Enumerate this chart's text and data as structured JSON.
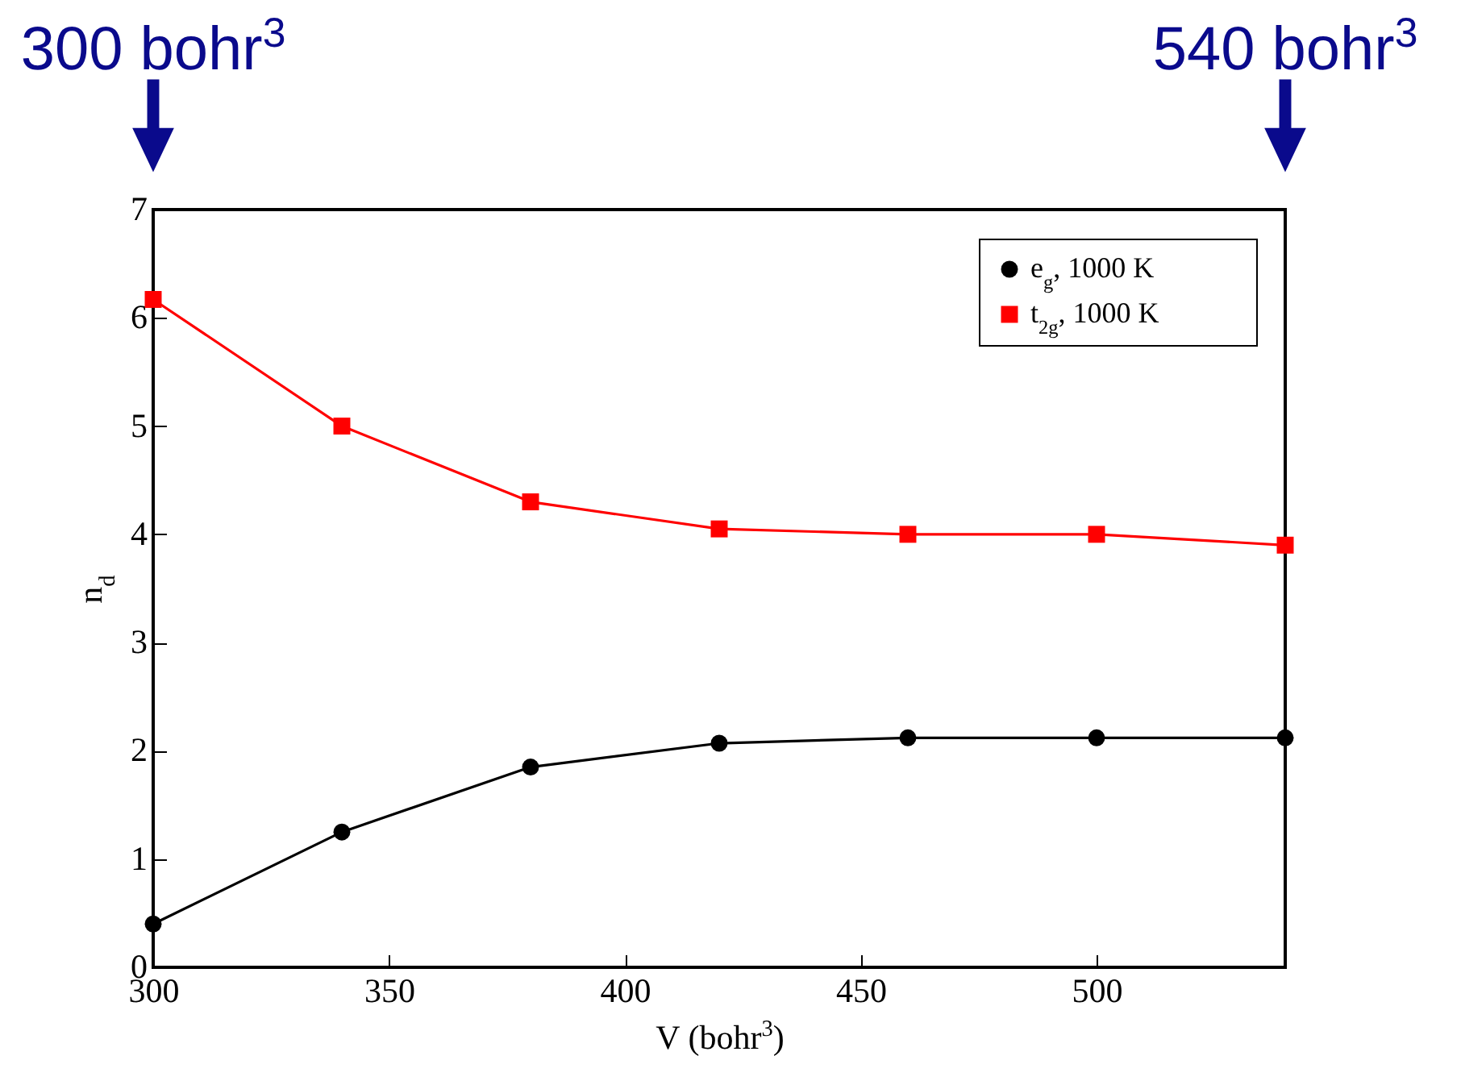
{
  "chart_data": {
    "type": "line",
    "xlabel": "V (bohr$^{3}$)",
    "ylabel": "n$_{d}$",
    "x": [
      300,
      340,
      380,
      420,
      460,
      500,
      540
    ],
    "series": [
      {
        "name": "e$_{g}$, 1000 K",
        "color": "#000000",
        "marker": "circle",
        "values": [
          0.4,
          1.25,
          1.85,
          2.07,
          2.12,
          2.12,
          2.12
        ]
      },
      {
        "name": "t$_{2g}$, 1000 K",
        "color": "#ff0000",
        "marker": "square",
        "values": [
          6.17,
          5.0,
          4.3,
          4.05,
          4.0,
          4.0,
          3.9
        ]
      }
    ],
    "xlim": [
      300,
      540
    ],
    "xticks": [
      300,
      350,
      400,
      450,
      500
    ],
    "ylim": [
      0,
      7
    ],
    "yticks": [
      0,
      1,
      2,
      3,
      4,
      5,
      6,
      7
    ],
    "grid": false,
    "legend": "top right",
    "line_style": "solid",
    "annotations": [
      "300 bohr$^{3}$",
      "540 bohr$^{3}$"
    ]
  }
}
